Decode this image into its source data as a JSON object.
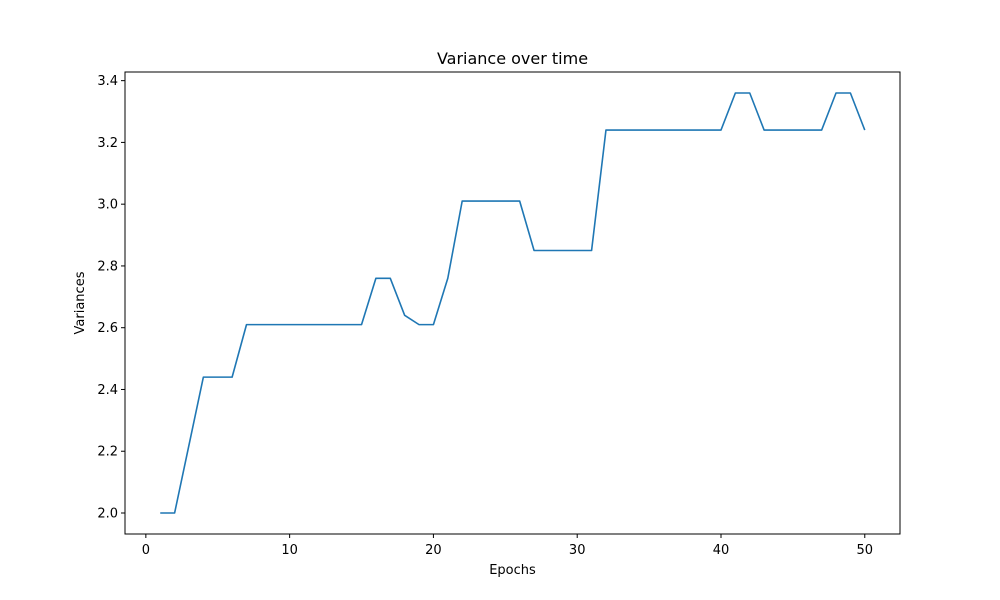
{
  "chart_data": {
    "type": "line",
    "title": "Variance over time",
    "xlabel": "Epochs",
    "ylabel": "Variances",
    "xlim": [
      -1.45,
      52.45
    ],
    "ylim": [
      1.932,
      3.428
    ],
    "xticks": [
      0,
      10,
      20,
      30,
      40,
      50
    ],
    "yticks": [
      2.0,
      2.2,
      2.4,
      2.6,
      2.8,
      3.0,
      3.2,
      3.4
    ],
    "grid": false,
    "series": [
      {
        "color": "#1f77b4",
        "x": [
          1,
          2,
          3,
          4,
          5,
          6,
          7,
          8,
          9,
          10,
          11,
          12,
          13,
          14,
          15,
          16,
          17,
          18,
          19,
          20,
          21,
          22,
          23,
          24,
          25,
          26,
          27,
          28,
          29,
          30,
          31,
          32,
          33,
          34,
          35,
          36,
          37,
          38,
          39,
          40,
          41,
          42,
          43,
          44,
          45,
          46,
          47,
          48,
          49,
          50
        ],
        "values": [
          2.0,
          2.0,
          2.22,
          2.44,
          2.44,
          2.44,
          2.61,
          2.61,
          2.61,
          2.61,
          2.61,
          2.61,
          2.61,
          2.61,
          2.61,
          2.76,
          2.76,
          2.64,
          2.61,
          2.61,
          2.76,
          3.01,
          3.01,
          3.01,
          3.01,
          3.01,
          2.85,
          2.85,
          2.85,
          2.85,
          2.85,
          3.24,
          3.24,
          3.24,
          3.24,
          3.24,
          3.24,
          3.24,
          3.24,
          3.24,
          3.36,
          3.36,
          3.24,
          3.24,
          3.24,
          3.24,
          3.24,
          3.36,
          3.36,
          3.24
        ]
      }
    ]
  }
}
